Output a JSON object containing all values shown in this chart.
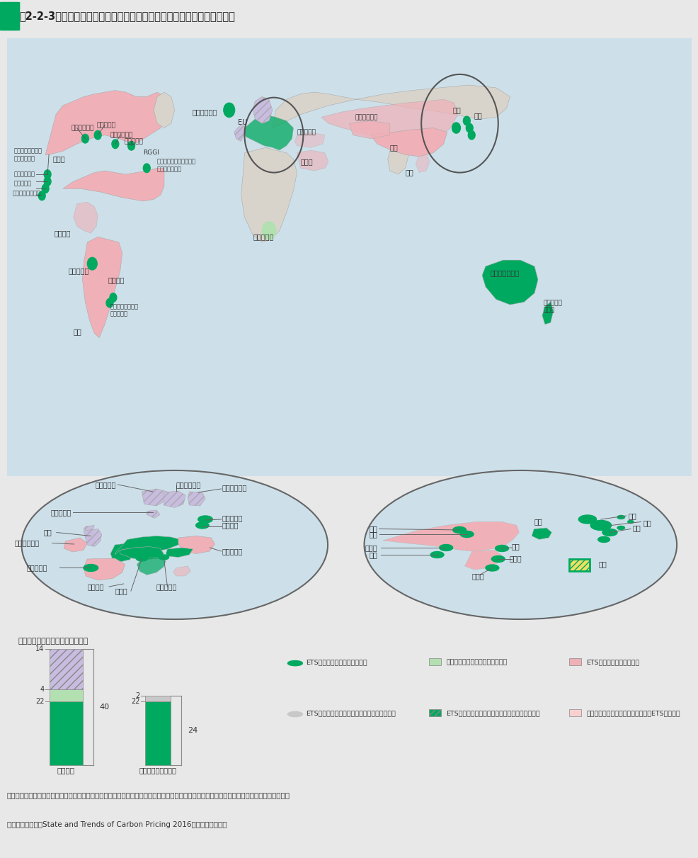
{
  "title": "围2-2-3　政府・地域・自治体におけるカーボンプライシングの導入状況",
  "bg_color": "#e8e8e8",
  "map_bg": "#cde0ea",
  "white_bg": "#f5f5f0",
  "note1": "注：「導入又は予定」は、立法機関により採択され、開始予定日が決定されたもの。「検討中」は、導入に向けた検討を公式に表明したもの。",
  "note2": "資料：世界銀行『State and Trends of Carbon Pricing 2016』より環境省作成",
  "bar_title": "カーボンプライシング導入の状況",
  "bar1_label": "国レベル",
  "bar2_label": "自治体・地域レベル",
  "green": "#00a960",
  "light_green": "#b2e0b0",
  "pink": "#f0b0b8",
  "purple_hatch": "#c8bce0",
  "gray": "#c8c8c8",
  "light_pink": "#f8d0d0",
  "ocean": "#cde0ea",
  "land_plain": "#d8d4cc",
  "land_pink": "#f0b0b8",
  "white": "#f5f5f0"
}
